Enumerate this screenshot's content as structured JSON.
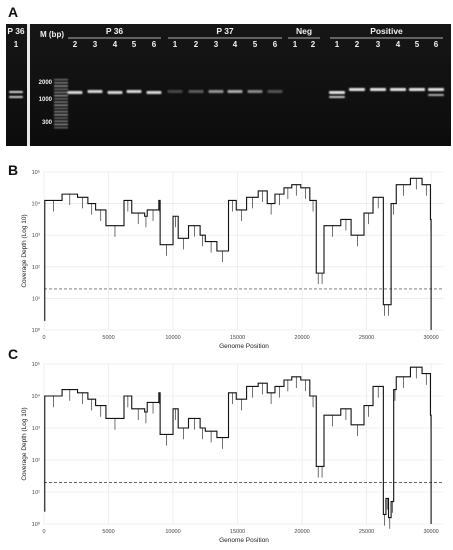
{
  "panels": [
    "A",
    "B",
    "C"
  ],
  "gel": {
    "marker_header": "M (bp)",
    "marker_sizes": [
      "2000",
      "1000",
      "300"
    ],
    "groups": [
      {
        "label": "P 36",
        "lanes": [
          "1"
        ]
      },
      {
        "label": "P 36",
        "lanes": [
          "2",
          "3",
          "4",
          "5",
          "6"
        ]
      },
      {
        "label": "P 37",
        "lanes": [
          "1",
          "2",
          "3",
          "4",
          "5",
          "6"
        ]
      },
      {
        "label": "Neg",
        "lanes": [
          "1",
          "2"
        ]
      },
      {
        "label": "Positive",
        "lanes": [
          "1",
          "2",
          "3",
          "4",
          "5",
          "6"
        ]
      }
    ]
  },
  "chart_data": [
    {
      "type": "line",
      "panel": "B",
      "title": "",
      "xlabel": "Genome Position",
      "ylabel": "Coverage Depth (Log 10)",
      "xlim": [
        0,
        31000
      ],
      "ylim_log10": [
        0,
        5
      ],
      "x_ticks": [
        0,
        5000,
        10000,
        15000,
        20000,
        25000,
        30000
      ],
      "y_ticks": [
        "10⁰",
        "10¹",
        "10²",
        "10³",
        "10⁴",
        "10⁵"
      ],
      "threshold_log10": 1.3,
      "grid": true,
      "series": [
        {
          "x": [
            30,
            60,
            1400,
            2600,
            3400,
            4000,
            4800,
            6200,
            6800,
            7800,
            8000,
            8900,
            9000,
            10000,
            10400,
            11200,
            12100,
            12500,
            13400,
            14300,
            14900,
            15700,
            16600,
            17300,
            17900,
            18600,
            19200,
            19900,
            20600,
            21100,
            21400,
            21700,
            23000,
            23800,
            24800,
            25500,
            26300,
            26500,
            26900,
            27300,
            28400,
            29300,
            29950,
            30000
          ],
          "y_log10": [
            0.3,
            4.1,
            4.3,
            4.2,
            4.0,
            3.8,
            3.3,
            4.1,
            3.7,
            3.6,
            3.8,
            4.1,
            2.7,
            3.6,
            2.9,
            3.3,
            3.0,
            2.8,
            2.5,
            4.1,
            3.8,
            4.2,
            4.4,
            4.0,
            4.3,
            4.5,
            4.6,
            4.5,
            4.1,
            1.8,
            1.8,
            3.3,
            3.5,
            3.0,
            3.7,
            4.2,
            0.8,
            0.8,
            4.0,
            4.6,
            4.8,
            4.6,
            3.5,
            0.0
          ]
        }
      ]
    },
    {
      "type": "line",
      "panel": "C",
      "title": "",
      "xlabel": "Genome Position",
      "ylabel": "Coverage Depth (Log 10)",
      "xlim": [
        0,
        31000
      ],
      "ylim_log10": [
        0,
        5
      ],
      "x_ticks": [
        0,
        5000,
        10000,
        15000,
        20000,
        25000,
        30000
      ],
      "y_ticks": [
        "10⁰",
        "10¹",
        "10²",
        "10³",
        "10⁴",
        "10⁵"
      ],
      "threshold_log10": 1.3,
      "grid": true,
      "series": [
        {
          "x": [
            30,
            60,
            1400,
            2600,
            3400,
            4000,
            4800,
            6200,
            6800,
            7800,
            8000,
            8900,
            9000,
            10000,
            10400,
            11200,
            12100,
            12500,
            13400,
            14300,
            14900,
            15700,
            16600,
            17300,
            17900,
            18600,
            19200,
            19900,
            20600,
            21100,
            21400,
            21700,
            23000,
            23800,
            24800,
            25500,
            26300,
            26500,
            26700,
            26900,
            27100,
            27300,
            28400,
            29300,
            29950,
            30000
          ],
          "y_log10": [
            0.4,
            4.0,
            4.2,
            4.1,
            3.9,
            3.7,
            3.3,
            4.0,
            3.6,
            3.5,
            3.8,
            4.1,
            2.8,
            3.6,
            3.0,
            3.3,
            3.0,
            2.9,
            2.7,
            4.1,
            3.9,
            4.3,
            4.4,
            4.1,
            4.3,
            4.5,
            4.6,
            4.5,
            4.0,
            1.8,
            1.8,
            3.4,
            3.6,
            3.1,
            3.7,
            4.3,
            0.3,
            0.8,
            0.2,
            0.7,
            4.2,
            4.6,
            4.9,
            4.7,
            3.4,
            0.0
          ]
        }
      ]
    }
  ]
}
